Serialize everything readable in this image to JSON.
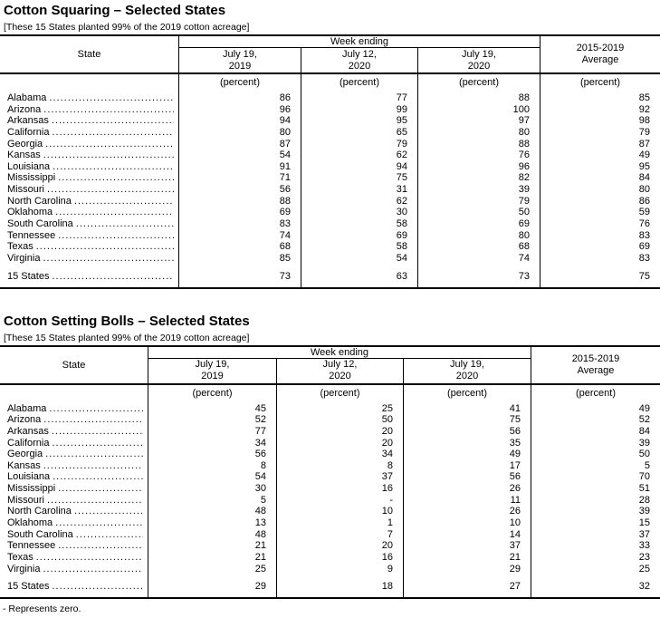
{
  "document": {
    "footnote": "- Represents zero."
  },
  "tables": [
    {
      "title": "Cotton Squaring – Selected States",
      "note": "[These 15 States planted 99% of the 2019 cotton acreage]",
      "header": {
        "state": "State",
        "week_ending": "Week ending",
        "col1_line1": "July 19,",
        "col1_line2": "2019",
        "col2_line1": "July 12,",
        "col2_line2": "2020",
        "col3_line1": "July 19,",
        "col3_line2": "2020",
        "avg_line1": "2015-2019",
        "avg_line2": "Average",
        "unit": "(percent)"
      },
      "rows": [
        {
          "state": "Alabama",
          "v1": "86",
          "v2": "77",
          "v3": "88",
          "avg": "85"
        },
        {
          "state": "Arizona",
          "v1": "96",
          "v2": "99",
          "v3": "100",
          "avg": "92"
        },
        {
          "state": "Arkansas",
          "v1": "94",
          "v2": "95",
          "v3": "97",
          "avg": "98"
        },
        {
          "state": "California",
          "v1": "80",
          "v2": "65",
          "v3": "80",
          "avg": "79"
        },
        {
          "state": "Georgia",
          "v1": "87",
          "v2": "79",
          "v3": "88",
          "avg": "87"
        },
        {
          "state": "Kansas",
          "v1": "54",
          "v2": "62",
          "v3": "76",
          "avg": "49"
        },
        {
          "state": "Louisiana",
          "v1": "91",
          "v2": "94",
          "v3": "96",
          "avg": "95"
        },
        {
          "state": "Mississippi",
          "v1": "71",
          "v2": "75",
          "v3": "82",
          "avg": "84"
        },
        {
          "state": "Missouri",
          "v1": "56",
          "v2": "31",
          "v3": "39",
          "avg": "80"
        },
        {
          "state": "North Carolina",
          "v1": "88",
          "v2": "62",
          "v3": "79",
          "avg": "86"
        },
        {
          "state": "Oklahoma",
          "v1": "69",
          "v2": "30",
          "v3": "50",
          "avg": "59"
        },
        {
          "state": "South Carolina",
          "v1": "83",
          "v2": "58",
          "v3": "69",
          "avg": "76"
        },
        {
          "state": "Tennessee",
          "v1": "74",
          "v2": "69",
          "v3": "80",
          "avg": "83"
        },
        {
          "state": "Texas",
          "v1": "68",
          "v2": "58",
          "v3": "68",
          "avg": "69"
        },
        {
          "state": "Virginia",
          "v1": "85",
          "v2": "54",
          "v3": "74",
          "avg": "83"
        }
      ],
      "total": {
        "state": "15 States",
        "v1": "73",
        "v2": "63",
        "v3": "73",
        "avg": "75"
      }
    },
    {
      "title": "Cotton Setting Bolls – Selected States",
      "note": "[These 15 States planted 99% of the 2019 cotton acreage]",
      "header": {
        "state": "State",
        "week_ending": "Week ending",
        "col1_line1": "July 19,",
        "col1_line2": "2019",
        "col2_line1": "July 12,",
        "col2_line2": "2020",
        "col3_line1": "July 19,",
        "col3_line2": "2020",
        "avg_line1": "2015-2019",
        "avg_line2": "Average",
        "unit": "(percent)"
      },
      "rows": [
        {
          "state": "Alabama",
          "v1": "45",
          "v2": "25",
          "v3": "41",
          "avg": "49"
        },
        {
          "state": "Arizona",
          "v1": "52",
          "v2": "50",
          "v3": "75",
          "avg": "52"
        },
        {
          "state": "Arkansas",
          "v1": "77",
          "v2": "20",
          "v3": "56",
          "avg": "84"
        },
        {
          "state": "California",
          "v1": "34",
          "v2": "20",
          "v3": "35",
          "avg": "39"
        },
        {
          "state": "Georgia",
          "v1": "56",
          "v2": "34",
          "v3": "49",
          "avg": "50"
        },
        {
          "state": "Kansas",
          "v1": "8",
          "v2": "8",
          "v3": "17",
          "avg": "5"
        },
        {
          "state": "Louisiana",
          "v1": "54",
          "v2": "37",
          "v3": "56",
          "avg": "70"
        },
        {
          "state": "Mississippi",
          "v1": "30",
          "v2": "16",
          "v3": "26",
          "avg": "51"
        },
        {
          "state": "Missouri",
          "v1": "5",
          "v2": "-",
          "v3": "11",
          "avg": "28"
        },
        {
          "state": "North Carolina",
          "v1": "48",
          "v2": "10",
          "v3": "26",
          "avg": "39"
        },
        {
          "state": "Oklahoma",
          "v1": "13",
          "v2": "1",
          "v3": "10",
          "avg": "15"
        },
        {
          "state": "South Carolina",
          "v1": "48",
          "v2": "7",
          "v3": "14",
          "avg": "37"
        },
        {
          "state": "Tennessee",
          "v1": "21",
          "v2": "20",
          "v3": "37",
          "avg": "33"
        },
        {
          "state": "Texas",
          "v1": "21",
          "v2": "16",
          "v3": "21",
          "avg": "23"
        },
        {
          "state": "Virginia",
          "v1": "25",
          "v2": "9",
          "v3": "29",
          "avg": "25"
        }
      ],
      "total": {
        "state": "15 States",
        "v1": "29",
        "v2": "18",
        "v3": "27",
        "avg": "32"
      }
    }
  ]
}
